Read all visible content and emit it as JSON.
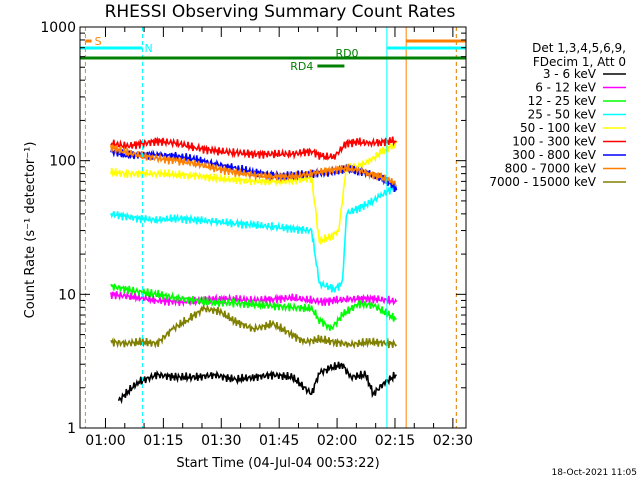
{
  "chart_data": {
    "type": "line",
    "title": "RHESSI Observing Summary Count Rates",
    "xlabel": "Start Time (04-Jul-04 00:53:22)",
    "ylabel": "Count Rate (s⁻¹ detector⁻¹)",
    "yscale": "log",
    "xlim": [
      0,
      100
    ],
    "ylim": [
      1,
      1000
    ],
    "x_ticks": [
      {
        "t": 6.6,
        "label": "01:00"
      },
      {
        "t": 21.6,
        "label": "01:15"
      },
      {
        "t": 36.6,
        "label": "01:30"
      },
      {
        "t": 51.6,
        "label": "01:45"
      },
      {
        "t": 66.6,
        "label": "02:00"
      },
      {
        "t": 81.6,
        "label": "02:15"
      },
      {
        "t": 96.6,
        "label": "02:30"
      }
    ],
    "y_ticks": [
      {
        "v": 1,
        "label": "1"
      },
      {
        "v": 10,
        "label": "10"
      },
      {
        "v": 100,
        "label": "100"
      },
      {
        "v": 1000,
        "label": "1000"
      }
    ],
    "legend": {
      "header": [
        "Det 1,3,4,5,6,9,",
        "FDecim 1, Att 0"
      ],
      "placement": "right"
    },
    "series": [
      {
        "name": "3 - 6 keV",
        "color": "#000000",
        "points": [
          [
            10,
            1.6
          ],
          [
            15,
            2.2
          ],
          [
            20,
            2.5
          ],
          [
            25,
            2.4
          ],
          [
            30,
            2.4
          ],
          [
            35,
            2.5
          ],
          [
            40,
            2.3
          ],
          [
            45,
            2.4
          ],
          [
            50,
            2.5
          ],
          [
            55,
            2.4
          ],
          [
            60,
            1.8
          ],
          [
            62,
            2.6
          ],
          [
            65,
            2.8
          ],
          [
            68,
            3.0
          ],
          [
            70,
            2.4
          ],
          [
            74,
            2.5
          ],
          [
            76,
            1.8
          ],
          [
            79,
            2.2
          ],
          [
            82,
            2.5
          ]
        ]
      },
      {
        "name": "6 - 12 keV",
        "color": "#ff00ff",
        "points": [
          [
            8,
            10
          ],
          [
            15,
            9.5
          ],
          [
            20,
            9.0
          ],
          [
            25,
            8.8
          ],
          [
            30,
            8.9
          ],
          [
            35,
            9.2
          ],
          [
            40,
            9.2
          ],
          [
            45,
            9.0
          ],
          [
            50,
            9.2
          ],
          [
            55,
            9.4
          ],
          [
            60,
            9.0
          ],
          [
            63,
            8.8
          ],
          [
            66,
            9.0
          ],
          [
            70,
            9.2
          ],
          [
            75,
            9.3
          ],
          [
            80,
            9.0
          ],
          [
            82,
            8.8
          ]
        ]
      },
      {
        "name": "12 - 25 keV",
        "color": "#00ff00",
        "points": [
          [
            8,
            11.5
          ],
          [
            15,
            10.5
          ],
          [
            20,
            10.0
          ],
          [
            25,
            9.4
          ],
          [
            30,
            9.0
          ],
          [
            35,
            8.7
          ],
          [
            40,
            8.6
          ],
          [
            45,
            8.4
          ],
          [
            50,
            8.2
          ],
          [
            55,
            8.0
          ],
          [
            60,
            7.8
          ],
          [
            62,
            6.5
          ],
          [
            65,
            5.5
          ],
          [
            68,
            7.0
          ],
          [
            72,
            8.5
          ],
          [
            76,
            8.3
          ],
          [
            80,
            7.0
          ],
          [
            82,
            6.5
          ]
        ]
      },
      {
        "name": "25 - 50 keV",
        "color": "#00ffff",
        "points": [
          [
            8,
            40
          ],
          [
            15,
            37
          ],
          [
            20,
            36
          ],
          [
            25,
            37
          ],
          [
            30,
            36
          ],
          [
            35,
            35
          ],
          [
            40,
            34
          ],
          [
            45,
            33
          ],
          [
            50,
            32
          ],
          [
            55,
            31
          ],
          [
            60,
            30
          ],
          [
            62,
            12
          ],
          [
            66,
            11
          ],
          [
            68,
            12
          ],
          [
            69,
            40
          ],
          [
            72,
            44
          ],
          [
            75,
            48
          ],
          [
            78,
            55
          ],
          [
            82,
            65
          ]
        ]
      },
      {
        "name": "50 - 100 keV",
        "color": "#ffff00",
        "points": [
          [
            8,
            82
          ],
          [
            12,
            80
          ],
          [
            20,
            80
          ],
          [
            25,
            79
          ],
          [
            30,
            77
          ],
          [
            35,
            74
          ],
          [
            40,
            72
          ],
          [
            45,
            70
          ],
          [
            50,
            70
          ],
          [
            55,
            71
          ],
          [
            60,
            74
          ],
          [
            62,
            25
          ],
          [
            65,
            27
          ],
          [
            67,
            30
          ],
          [
            69,
            88
          ],
          [
            72,
            90
          ],
          [
            75,
            100
          ],
          [
            78,
            115
          ],
          [
            81,
            130
          ],
          [
            82,
            135
          ]
        ]
      },
      {
        "name": "100 - 300 keV",
        "color": "#ff0000",
        "points": [
          [
            8,
            135
          ],
          [
            12,
            128
          ],
          [
            20,
            140
          ],
          [
            25,
            135
          ],
          [
            30,
            125
          ],
          [
            35,
            118
          ],
          [
            40,
            115
          ],
          [
            45,
            112
          ],
          [
            50,
            112
          ],
          [
            55,
            112
          ],
          [
            60,
            118
          ],
          [
            63,
            106
          ],
          [
            66,
            108
          ],
          [
            69,
            135
          ],
          [
            72,
            138
          ],
          [
            75,
            135
          ],
          [
            78,
            138
          ],
          [
            81,
            140
          ],
          [
            82,
            140
          ]
        ]
      },
      {
        "name": "300 - 800 keV",
        "color": "#0000ff",
        "points": [
          [
            8,
            118
          ],
          [
            12,
            110
          ],
          [
            20,
            110
          ],
          [
            25,
            108
          ],
          [
            30,
            102
          ],
          [
            35,
            94
          ],
          [
            40,
            88
          ],
          [
            45,
            82
          ],
          [
            50,
            78
          ],
          [
            55,
            77
          ],
          [
            60,
            80
          ],
          [
            65,
            82
          ],
          [
            69,
            86
          ],
          [
            72,
            84
          ],
          [
            75,
            80
          ],
          [
            78,
            74
          ],
          [
            81,
            66
          ],
          [
            82,
            60
          ]
        ]
      },
      {
        "name": "800 - 7000 keV",
        "color": "#ff8000",
        "points": [
          [
            8,
            126
          ],
          [
            12,
            115
          ],
          [
            20,
            104
          ],
          [
            25,
            100
          ],
          [
            30,
            95
          ],
          [
            35,
            88
          ],
          [
            40,
            82
          ],
          [
            45,
            78
          ],
          [
            50,
            76
          ],
          [
            55,
            76
          ],
          [
            60,
            80
          ],
          [
            65,
            85
          ],
          [
            69,
            88
          ],
          [
            72,
            85
          ],
          [
            75,
            80
          ],
          [
            78,
            75
          ],
          [
            81,
            70
          ],
          [
            82,
            65
          ]
        ]
      },
      {
        "name": "7000 - 15000 keV",
        "color": "#808000",
        "points": [
          [
            8,
            4.4
          ],
          [
            12,
            4.3
          ],
          [
            16,
            4.4
          ],
          [
            20,
            4.3
          ],
          [
            24,
            5.5
          ],
          [
            28,
            6.5
          ],
          [
            32,
            7.8
          ],
          [
            36,
            7.5
          ],
          [
            40,
            6.3
          ],
          [
            45,
            5.5
          ],
          [
            50,
            6.0
          ],
          [
            55,
            5.0
          ],
          [
            58,
            4.4
          ],
          [
            62,
            4.6
          ],
          [
            66,
            4.4
          ],
          [
            70,
            4.2
          ],
          [
            75,
            4.4
          ],
          [
            80,
            4.3
          ],
          [
            82,
            4.2
          ]
        ]
      }
    ],
    "segments": [
      {
        "label": "S",
        "color": "#ff8000",
        "level": 0,
        "start": 1.4,
        "end": 3.0
      },
      {
        "label": "N",
        "color": "#00ffff",
        "level": 1,
        "start": 0,
        "end": 16.2
      },
      {
        "label": "",
        "color": "#00ffff",
        "level": 1,
        "start": 79.5,
        "end": 100
      },
      {
        "label": "",
        "color": "#ff8000",
        "level": 0,
        "start": 84.5,
        "end": 100
      },
      {
        "label": "",
        "color": "#008000",
        "level": 2,
        "start": 0,
        "end": 100
      },
      {
        "label": "RD0",
        "color": "#008000",
        "level": 2,
        "start": 0,
        "end": 0
      },
      {
        "label": "RD4",
        "color": "#008000",
        "level": 3,
        "start": 61.5,
        "end": 68.5
      }
    ],
    "vlines": [
      {
        "t": 1.4,
        "color": "#ff8000",
        "style": "dashed"
      },
      {
        "t": 16.2,
        "color": "#00ffff",
        "style": "dashed"
      },
      {
        "t": 79.5,
        "color": "#00ffff",
        "style": "solid"
      },
      {
        "t": 84.5,
        "color": "#ff8000",
        "style": "solid"
      },
      {
        "t": 97.5,
        "color": "#00ffff",
        "style": "dashed"
      },
      {
        "t": 97.5,
        "color": "#ff8000",
        "style": "dashed"
      }
    ],
    "footer_date": "18-Oct-2021 11:05"
  }
}
